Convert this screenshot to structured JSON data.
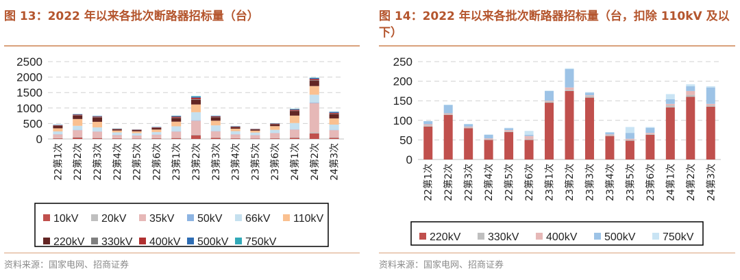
{
  "left": {
    "title": "图 13：2022 年以来各批次断路器招标量（台）",
    "source": "资料来源：国家电网、招商证券",
    "chart_data": {
      "type": "bar",
      "stacked": true,
      "title": "2022 年以来各批次断路器招标量（台）",
      "ylim": [
        0,
        2500
      ],
      "yticks": [
        0,
        500,
        1000,
        1500,
        2000,
        2500
      ],
      "categories": [
        "22第1次",
        "22第2次",
        "22第3次",
        "22第4次",
        "22第5次",
        "22第6次",
        "23第1次",
        "23第2次",
        "23第3次",
        "23第4次",
        "23第5次",
        "23第6次",
        "24第1次",
        "24第2次",
        "24第3次"
      ],
      "series": [
        {
          "name": "10kV",
          "color": "#c0504d",
          "values": [
            20,
            50,
            30,
            20,
            15,
            20,
            30,
            120,
            40,
            20,
            15,
            20,
            40,
            180,
            40
          ]
        },
        {
          "name": "20kV",
          "color": "#bfbfbf",
          "values": [
            10,
            15,
            10,
            8,
            8,
            10,
            10,
            20,
            10,
            8,
            8,
            10,
            15,
            30,
            15
          ]
        },
        {
          "name": "35kV",
          "color": "#e6b8b7",
          "values": [
            120,
            220,
            200,
            100,
            90,
            110,
            200,
            450,
            200,
            120,
            100,
            160,
            250,
            950,
            230
          ]
        },
        {
          "name": "50kV",
          "color": "#8db4e2",
          "values": [
            5,
            10,
            5,
            5,
            5,
            5,
            10,
            15,
            10,
            5,
            5,
            5,
            10,
            20,
            10
          ]
        },
        {
          "name": "66kV",
          "color": "#c5e0ef",
          "values": [
            90,
            130,
            130,
            80,
            70,
            80,
            160,
            260,
            180,
            100,
            80,
            100,
            200,
            250,
            170
          ]
        },
        {
          "name": "110kV",
          "color": "#fac090",
          "values": [
            100,
            220,
            180,
            60,
            60,
            80,
            150,
            250,
            150,
            80,
            60,
            120,
            240,
            280,
            200
          ]
        },
        {
          "name": "220kV",
          "color": "#632523",
          "values": [
            80,
            110,
            140,
            40,
            40,
            50,
            120,
            150,
            110,
            50,
            40,
            60,
            150,
            170,
            140
          ]
        },
        {
          "name": "330kV",
          "color": "#7f7f7f",
          "values": [
            5,
            10,
            10,
            5,
            5,
            5,
            10,
            20,
            10,
            5,
            5,
            5,
            10,
            20,
            10
          ]
        },
        {
          "name": "400kV",
          "color": "#b03030",
          "values": [
            15,
            20,
            20,
            10,
            10,
            15,
            30,
            50,
            20,
            15,
            10,
            15,
            30,
            40,
            30
          ]
        },
        {
          "name": "500kV",
          "color": "#2e6db4",
          "values": [
            10,
            15,
            15,
            5,
            5,
            10,
            20,
            30,
            15,
            10,
            5,
            10,
            20,
            30,
            30
          ]
        },
        {
          "name": "750kV",
          "color": "#31a9b8",
          "values": [
            5,
            5,
            5,
            5,
            2,
            5,
            10,
            20,
            5,
            5,
            2,
            5,
            10,
            10,
            5
          ]
        }
      ]
    }
  },
  "right": {
    "title": "图 14：2022 年以来各批次断路器招标量（台，扣除 110kV 及以下）",
    "source": "资料来源：国家电网、招商证券",
    "chart_data": {
      "type": "bar",
      "stacked": true,
      "title": "2022 年以来各批次断路器招标量（台，扣除 110kV 及以下）",
      "ylim": [
        0,
        250
      ],
      "yticks": [
        0,
        50,
        100,
        150,
        200,
        250
      ],
      "categories": [
        "22第1次",
        "22第2次",
        "22第3次",
        "22第4次",
        "22第5次",
        "22第6次",
        "23第1次",
        "23第2次",
        "23第3次",
        "23第4次",
        "23第5次",
        "23第6次",
        "24第1次",
        "24第2次",
        "24第3次"
      ],
      "series": [
        {
          "name": "220kV",
          "color": "#c0504d",
          "values": [
            84,
            114,
            80,
            50,
            70,
            50,
            145,
            175,
            158,
            60,
            48,
            63,
            133,
            160,
            135
          ]
        },
        {
          "name": "330kV",
          "color": "#bfbfbf",
          "values": [
            3,
            2,
            2,
            2,
            2,
            2,
            3,
            3,
            4,
            2,
            2,
            2,
            5,
            5,
            3
          ]
        },
        {
          "name": "400kV",
          "color": "#e6b8b7",
          "values": [
            3,
            2,
            2,
            2,
            3,
            8,
            2,
            6,
            2,
            2,
            3,
            3,
            4,
            10,
            4
          ]
        },
        {
          "name": "500kV",
          "color": "#9dc3e6",
          "values": [
            8,
            21,
            6,
            9,
            5,
            3,
            25,
            47,
            7,
            5,
            15,
            13,
            12,
            12,
            42
          ]
        },
        {
          "name": "750kV",
          "color": "#c9e4f4",
          "values": [
            0,
            1,
            1,
            1,
            1,
            10,
            1,
            2,
            1,
            1,
            15,
            2,
            13,
            5,
            3
          ]
        }
      ]
    }
  }
}
